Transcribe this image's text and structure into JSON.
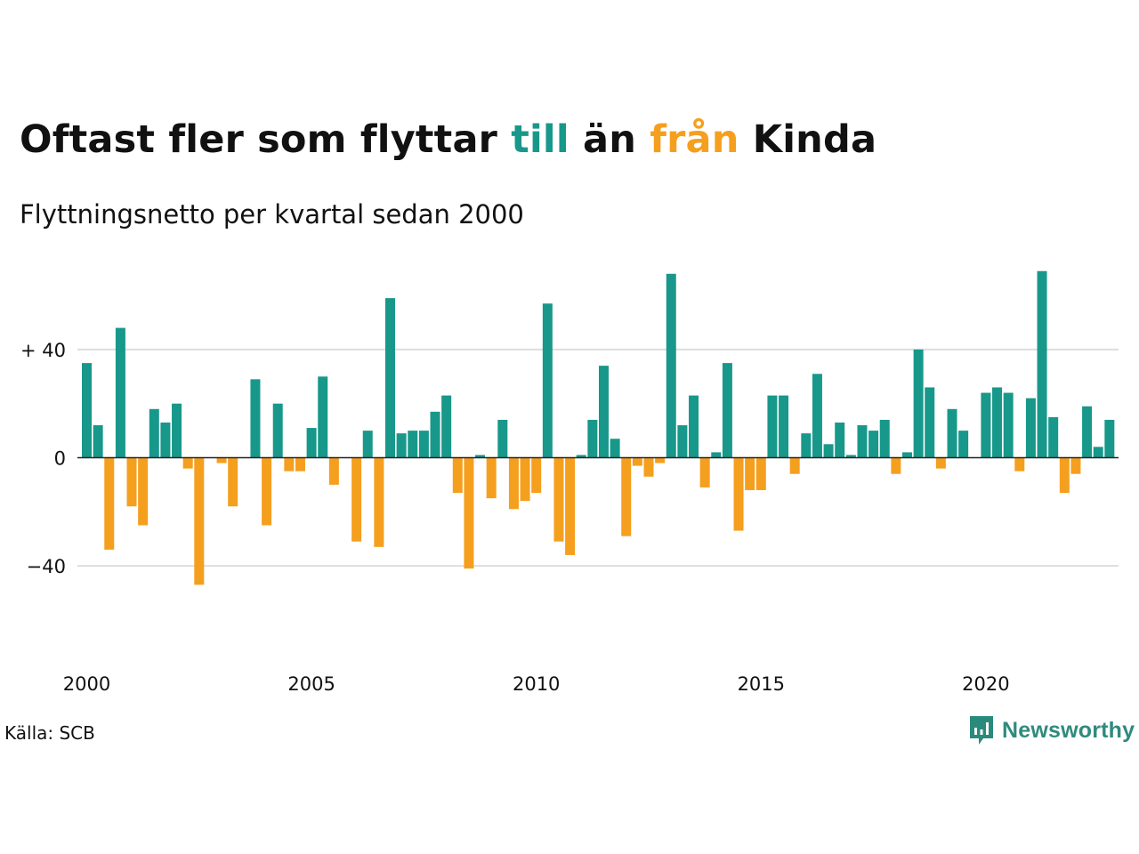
{
  "title": {
    "part1": "Oftast fler som flyttar ",
    "till": "till",
    "part2": " än ",
    "fran": "från",
    "part3": " Kinda"
  },
  "subtitle": "Flyttningsnetto per kvartal sedan 2000",
  "source": "Källa: SCB",
  "logo_text": "Newsworthy",
  "colors": {
    "positive": "#17988a",
    "negative": "#f59f1e",
    "grid": "#dddddd",
    "zero": "#222222",
    "logo": "#2a8a7c",
    "logo_text": "#2f8b7d"
  },
  "chart_data": {
    "type": "bar",
    "x_start": "2000 Q1",
    "x_ticks": [
      "2000",
      "2005",
      "2010",
      "2015",
      "2020"
    ],
    "y_ticks": [
      {
        "value": 40,
        "label": "+ 40"
      },
      {
        "value": 0,
        "label": "0"
      },
      {
        "value": -40,
        "label": "−40"
      }
    ],
    "values": [
      35,
      12,
      -34,
      48,
      -18,
      -25,
      18,
      13,
      20,
      -4,
      -47,
      0,
      -2,
      -18,
      0,
      29,
      -25,
      20,
      -5,
      -5,
      11,
      30,
      -10,
      0,
      -31,
      10,
      -33,
      59,
      9,
      10,
      10,
      17,
      23,
      -13,
      -41,
      1,
      -15,
      14,
      -19,
      -16,
      -13,
      57,
      -31,
      -36,
      1,
      14,
      34,
      7,
      -29,
      -3,
      -7,
      -2,
      68,
      12,
      23,
      -11,
      2,
      35,
      -27,
      -12,
      -12,
      23,
      23,
      -6,
      9,
      31,
      5,
      13,
      1,
      12,
      10,
      14,
      -6,
      2,
      40,
      26,
      -4,
      18,
      10,
      0,
      24,
      26,
      24,
      -5,
      22,
      69,
      15,
      -13,
      -6,
      19,
      4,
      14
    ],
    "ylim": [
      -50,
      70
    ],
    "grid": true
  }
}
